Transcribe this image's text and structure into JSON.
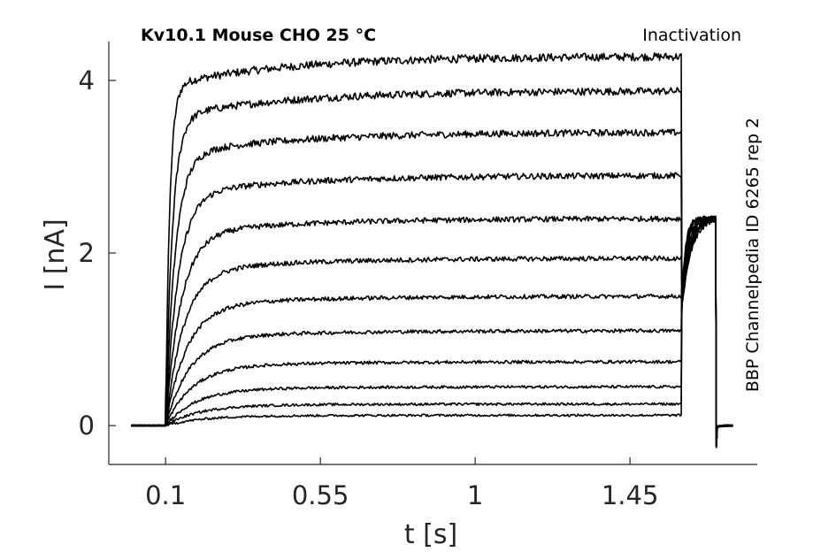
{
  "chart_data": {
    "type": "line",
    "title": "Kv10.1  Mouse  CHO  25 °C",
    "protocol_label": "Inactivation",
    "source_label": "BBP Channelpedia ID 6265 rep 2",
    "xlabel": "t [s]",
    "ylabel": "I [nA]",
    "xlim": [
      -0.065,
      1.82
    ],
    "ylim": [
      -0.45,
      4.45
    ],
    "x_ticks": [
      0.1,
      0.55,
      1,
      1.45
    ],
    "x_tick_labels": [
      "0.1",
      "0.55",
      "1",
      "1.45"
    ],
    "y_ticks": [
      0,
      2,
      4
    ],
    "y_tick_labels": [
      "0",
      "2",
      "4"
    ],
    "grid": false,
    "legend": "none",
    "pulse_start_s": 0.1,
    "pulse_end_s": 1.6,
    "tail_end_s": 1.7,
    "trace_end_s": 1.75,
    "series": [
      {
        "steady_state_nA": 4.28
      },
      {
        "steady_state_nA": 3.88
      },
      {
        "steady_state_nA": 3.4
      },
      {
        "steady_state_nA": 2.9
      },
      {
        "steady_state_nA": 2.4
      },
      {
        "steady_state_nA": 1.94
      },
      {
        "steady_state_nA": 1.5
      },
      {
        "steady_state_nA": 1.1
      },
      {
        "steady_state_nA": 0.74
      },
      {
        "steady_state_nA": 0.45
      },
      {
        "steady_state_nA": 0.25
      },
      {
        "steady_state_nA": 0.12
      }
    ],
    "tail_current_nA": 2.4
  }
}
